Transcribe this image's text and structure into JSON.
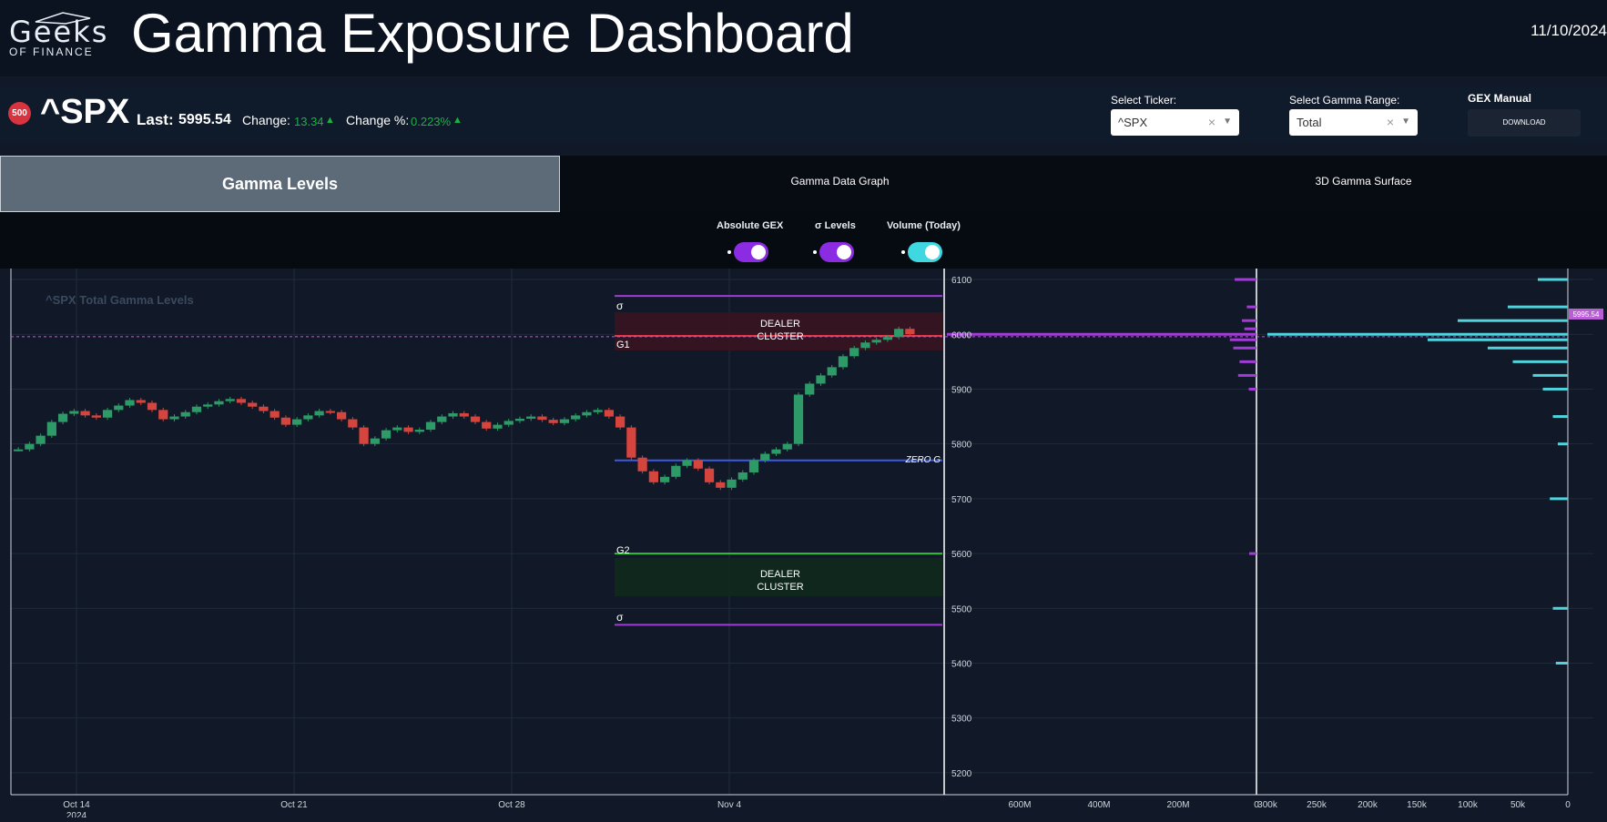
{
  "header": {
    "logo_top": "Geeks",
    "logo_bottom": "OF FINANCE",
    "title": "Gamma Exposure Dashboard",
    "date": "11/10/2024"
  },
  "ticker": {
    "badge": "500",
    "symbol": "^SPX",
    "last_label": "Last:",
    "last_value": "5995.54",
    "change_label": "Change:",
    "change_value": "13.34",
    "change_pct_label": "Change %:",
    "change_pct_value": "0.223%"
  },
  "controls": {
    "ticker_label": "Select Ticker:",
    "ticker_value": "^SPX",
    "range_label": "Select Gamma Range:",
    "range_value": "Total",
    "manual_label": "GEX Manual",
    "download_label": "DOWNLOAD"
  },
  "tabs": [
    "Gamma Levels",
    "Gamma Data Graph",
    "3D Gamma Surface"
  ],
  "toggles": [
    {
      "label": "Absolute GEX",
      "color": "#8b2be2"
    },
    {
      "label": "σ Levels",
      "color": "#8b2be2"
    },
    {
      "label": "Volume (Today)",
      "color": "#3fd8e0"
    }
  ],
  "chart": {
    "watermark": "^SPX Total Gamma Levels",
    "price_ticks": [
      "6100",
      "6000",
      "5900",
      "5800",
      "5700",
      "5600",
      "5500",
      "5400",
      "5300",
      "5200"
    ],
    "x_ticks": [
      "Oct 14",
      "Oct 21",
      "Oct 28",
      "Nov 4"
    ],
    "x_year": "2024",
    "gex_ticks": [
      "600M",
      "400M",
      "200M",
      "0"
    ],
    "vol_ticks": [
      "300k",
      "250k",
      "200k",
      "150k",
      "100k",
      "50k",
      "0"
    ],
    "price_label": "5995.54",
    "levels": {
      "sigma_upper": "σ",
      "g1": "G1",
      "zero_g": "ZERO G",
      "g2": "G2",
      "sigma_lower": "σ",
      "dealer_cluster_upper": [
        "DEALER",
        "CLUSTER"
      ],
      "dealer_cluster_lower": [
        "DEALER",
        "CLUSTER"
      ]
    }
  },
  "chart_data": {
    "type": "candlestick",
    "ylim": [
      5160,
      6120
    ],
    "level_values": {
      "sigma_upper": 6070,
      "g1": 5997,
      "zero_g": 5770,
      "g2": 5600,
      "sigma_lower": 5470
    },
    "close_series": [
      5790,
      5800,
      5815,
      5840,
      5855,
      5860,
      5852,
      5848,
      5862,
      5870,
      5880,
      5875,
      5862,
      5845,
      5850,
      5858,
      5868,
      5872,
      5878,
      5882,
      5875,
      5868,
      5860,
      5848,
      5835,
      5845,
      5852,
      5860,
      5858,
      5845,
      5830,
      5800,
      5810,
      5825,
      5830,
      5822,
      5826,
      5840,
      5850,
      5856,
      5850,
      5840,
      5828,
      5835,
      5842,
      5846,
      5850,
      5844,
      5838,
      5845,
      5852,
      5858,
      5862,
      5850,
      5830,
      5775,
      5750,
      5730,
      5740,
      5760,
      5770,
      5755,
      5730,
      5720,
      5735,
      5748,
      5770,
      5782,
      5790,
      5800,
      5890,
      5910,
      5925,
      5940,
      5960,
      5975,
      5985,
      5990,
      5995,
      6010,
      6000
    ],
    "gex_bars": [
      {
        "strike": 6100,
        "value": 45
      },
      {
        "strike": 6050,
        "value": 20
      },
      {
        "strike": 6025,
        "value": 30
      },
      {
        "strike": 6010,
        "value": 25
      },
      {
        "strike": 6000,
        "value": 640
      },
      {
        "strike": 5990,
        "value": 55
      },
      {
        "strike": 5975,
        "value": 48
      },
      {
        "strike": 5950,
        "value": 35
      },
      {
        "strike": 5925,
        "value": 38
      },
      {
        "strike": 5900,
        "value": 16
      },
      {
        "strike": 5600,
        "value": 15
      }
    ],
    "volume_bars": [
      {
        "strike": 6100,
        "value": 30
      },
      {
        "strike": 6050,
        "value": 60
      },
      {
        "strike": 6025,
        "value": 110
      },
      {
        "strike": 6000,
        "value": 300
      },
      {
        "strike": 5990,
        "value": 140
      },
      {
        "strike": 5975,
        "value": 80
      },
      {
        "strike": 5950,
        "value": 55
      },
      {
        "strike": 5925,
        "value": 35
      },
      {
        "strike": 5900,
        "value": 25
      },
      {
        "strike": 5850,
        "value": 15
      },
      {
        "strike": 5800,
        "value": 10
      },
      {
        "strike": 5700,
        "value": 18
      },
      {
        "strike": 5500,
        "value": 15
      },
      {
        "strike": 5400,
        "value": 12
      }
    ]
  }
}
